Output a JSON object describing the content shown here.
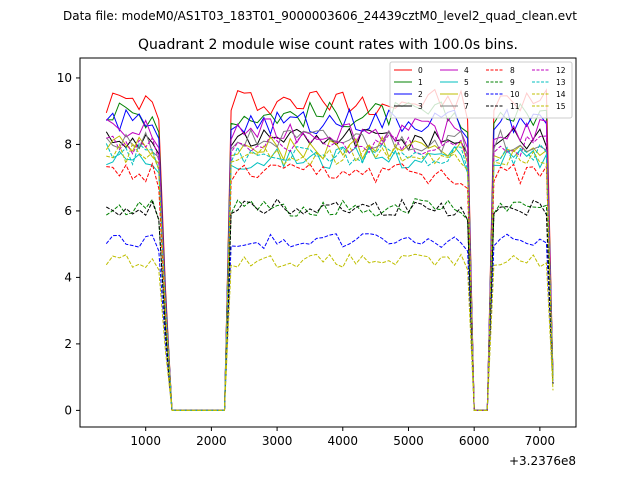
{
  "header": {
    "suptitle": "Data file: modeM0/AS1T03_183T01_9000003606_24439cztM0_level2_quad_clean.evt",
    "title": "Quadrant 2 module wise count rates with 100.0s bins."
  },
  "chart_data": {
    "type": "line",
    "title": "Quadrant 2 module wise count rates with 100.0s bins.",
    "xlabel": "",
    "ylabel": "",
    "x_offset_label": "+3.2376e8",
    "xlim": [
      0,
      7550
    ],
    "ylim": [
      -0.5,
      10.6
    ],
    "xticks": [
      1000,
      2000,
      3000,
      4000,
      5000,
      6000,
      7000
    ],
    "yticks": [
      0,
      2,
      4,
      6,
      8,
      10
    ],
    "grid": false,
    "legend_position": "top-right",
    "segments": [
      {
        "kind": "data",
        "x": [
          400,
          1200
        ]
      },
      {
        "kind": "fall",
        "x": [
          1200,
          1400
        ]
      },
      {
        "kind": "zero",
        "x": [
          1400,
          2200
        ]
      },
      {
        "kind": "rise",
        "x": [
          2200,
          2400
        ]
      },
      {
        "kind": "data",
        "x": [
          2400,
          5900
        ]
      },
      {
        "kind": "fall",
        "x": [
          5900,
          6000
        ]
      },
      {
        "kind": "zero",
        "x": [
          6000,
          6200
        ]
      },
      {
        "kind": "rise",
        "x": [
          6200,
          6400
        ]
      },
      {
        "kind": "data",
        "x": [
          6400,
          7100
        ]
      },
      {
        "kind": "end",
        "x": [
          7100,
          7200
        ]
      }
    ],
    "bin_step": 100,
    "series": [
      {
        "name": "0",
        "color": "#ff0000",
        "dash": "solid",
        "level": 9.3,
        "end_value": 1.0
      },
      {
        "name": "1",
        "color": "#008000",
        "dash": "solid",
        "level": 8.9,
        "end_value": 1.0
      },
      {
        "name": "2",
        "color": "#0000ff",
        "dash": "solid",
        "level": 8.7,
        "end_value": 1.0
      },
      {
        "name": "3",
        "color": "#000000",
        "dash": "solid",
        "level": 8.2,
        "end_value": 0.9
      },
      {
        "name": "4",
        "color": "#bf00bf",
        "dash": "solid",
        "level": 8.4,
        "end_value": 1.0
      },
      {
        "name": "5",
        "color": "#00bfbf",
        "dash": "solid",
        "level": 7.6,
        "end_value": 0.9
      },
      {
        "name": "6",
        "color": "#bfbf00",
        "dash": "solid",
        "level": 7.9,
        "end_value": 0.9
      },
      {
        "name": "7",
        "color": "#808080",
        "dash": "solid",
        "level": 8.1,
        "end_value": 1.0
      },
      {
        "name": "8",
        "color": "#ff0000",
        "dash": "dashed",
        "level": 7.1,
        "end_value": 0.8
      },
      {
        "name": "9",
        "color": "#008000",
        "dash": "dashed",
        "level": 6.1,
        "end_value": 0.8
      },
      {
        "name": "10",
        "color": "#0000ff",
        "dash": "dashed",
        "level": 5.1,
        "end_value": 0.8
      },
      {
        "name": "11",
        "color": "#000000",
        "dash": "dashed",
        "level": 6.1,
        "end_value": 0.8
      },
      {
        "name": "12",
        "color": "#bf00bf",
        "dash": "dashed",
        "level": 8.0,
        "end_value": 0.9
      },
      {
        "name": "13",
        "color": "#00bfbf",
        "dash": "dashed",
        "level": 7.7,
        "end_value": 0.9
      },
      {
        "name": "14",
        "color": "#bfbf00",
        "dash": "dashed",
        "level": 4.5,
        "end_value": 0.6
      },
      {
        "name": "15",
        "color": "#bfbf00",
        "dash": "dashed",
        "level": 7.7,
        "end_value": 0.9
      }
    ]
  }
}
